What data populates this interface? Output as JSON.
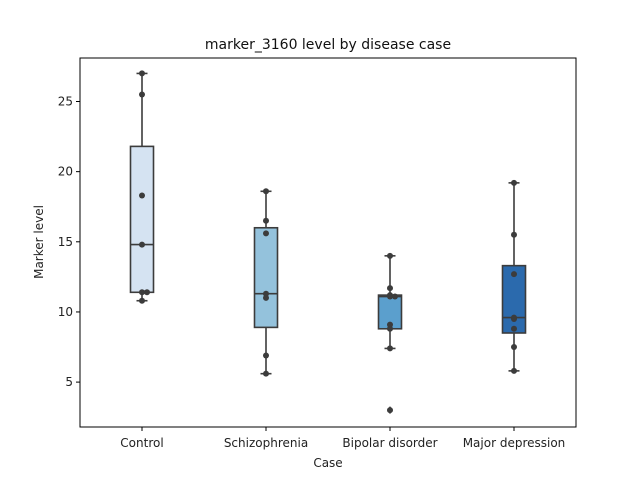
{
  "chart_data": {
    "type": "box",
    "title": "marker_3160 level by disease case",
    "xlabel": "Case",
    "ylabel": "Marker level",
    "ylim": [
      1.8,
      28.1
    ],
    "yticks": [
      5,
      10,
      15,
      20,
      25
    ],
    "grid": false,
    "legend": "none",
    "categories": [
      "Control",
      "Schizophrenia",
      "Bipolar disorder",
      "Major depression"
    ],
    "box_colors": [
      "#d5e3f2",
      "#94c2dc",
      "#5b9fcd",
      "#2b6aad"
    ],
    "edge_color": "#3c3c3c",
    "point_color": "#3c3c3c",
    "boxes": [
      {
        "whisker_low": 10.8,
        "q1": 11.4,
        "median": 14.8,
        "q3": 21.8,
        "whisker_high": 27.0,
        "outliers": []
      },
      {
        "whisker_low": 5.6,
        "q1": 8.9,
        "median": 11.3,
        "q3": 16.0,
        "whisker_high": 18.6,
        "outliers": []
      },
      {
        "whisker_low": 7.4,
        "q1": 8.8,
        "median": 11.1,
        "q3": 11.2,
        "whisker_high": 14.0,
        "outliers": [
          3.0
        ]
      },
      {
        "whisker_low": 5.8,
        "q1": 8.5,
        "median": 9.6,
        "q3": 13.3,
        "whisker_high": 19.2,
        "outliers": []
      }
    ],
    "points": [
      [
        27.0,
        25.5,
        18.3,
        14.8,
        11.4,
        11.4,
        10.8
      ],
      [
        18.6,
        16.5,
        15.6,
        11.3,
        11.0,
        6.9,
        5.6
      ],
      [
        14.0,
        11.7,
        11.2,
        11.1,
        11.1,
        9.1,
        8.8,
        7.4,
        3.0
      ],
      [
        19.2,
        15.5,
        12.7,
        9.6,
        9.5,
        8.8,
        7.5,
        5.8
      ]
    ]
  }
}
